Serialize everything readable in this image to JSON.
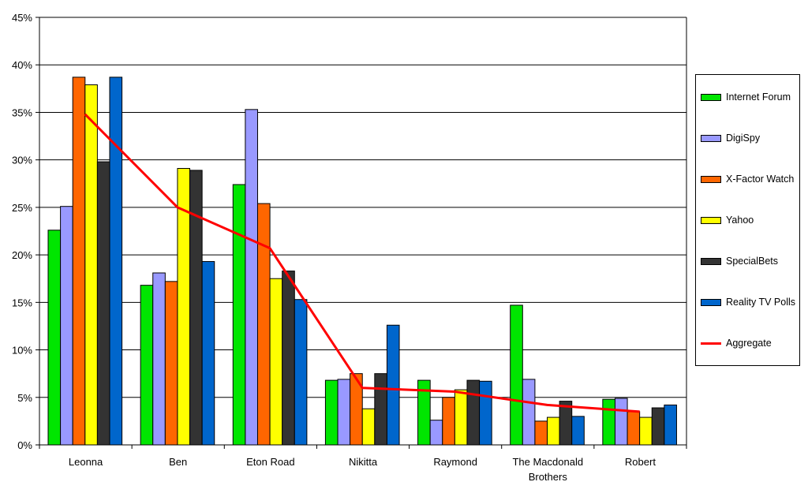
{
  "chart_data": {
    "type": "bar",
    "categories": [
      [
        "Leonna"
      ],
      [
        "Ben"
      ],
      [
        "Eton Road"
      ],
      [
        "Nikitta"
      ],
      [
        "Raymond"
      ],
      [
        "The Macdonald",
        "Brothers"
      ],
      [
        "Robert"
      ]
    ],
    "yticks": [
      "0%",
      "5%",
      "10%",
      "15%",
      "20%",
      "25%",
      "30%",
      "35%",
      "40%",
      "45%"
    ],
    "ylim": [
      0,
      45
    ],
    "grid": true,
    "legend_position": "right",
    "series": [
      {
        "name": "Internet Forum",
        "color": "#00e600",
        "values": [
          22.6,
          16.8,
          27.4,
          6.8,
          6.8,
          14.7,
          4.8
        ]
      },
      {
        "name": "DigiSpy",
        "color": "#9999ff",
        "values": [
          25.1,
          18.1,
          35.3,
          6.9,
          2.6,
          6.9,
          4.9
        ]
      },
      {
        "name": "X-Factor Watch",
        "color": "#ff6600",
        "values": [
          38.7,
          17.2,
          25.4,
          7.5,
          5.0,
          2.5,
          3.5
        ]
      },
      {
        "name": "Yahoo",
        "color": "#ffff00",
        "values": [
          37.9,
          29.1,
          17.5,
          3.8,
          5.8,
          2.9,
          2.9
        ]
      },
      {
        "name": "SpecialBets",
        "color": "#333333",
        "values": [
          29.8,
          28.9,
          18.3,
          7.5,
          6.8,
          4.6,
          3.9
        ]
      },
      {
        "name": "Reality TV Polls",
        "color": "#0066cc",
        "values": [
          38.7,
          19.3,
          15.3,
          12.6,
          6.7,
          3.0,
          4.2
        ]
      }
    ],
    "line": {
      "name": "Aggregate",
      "color": "#ff0000",
      "values": [
        34.8,
        25.0,
        20.7,
        6.0,
        5.6,
        4.2,
        3.5
      ]
    }
  }
}
